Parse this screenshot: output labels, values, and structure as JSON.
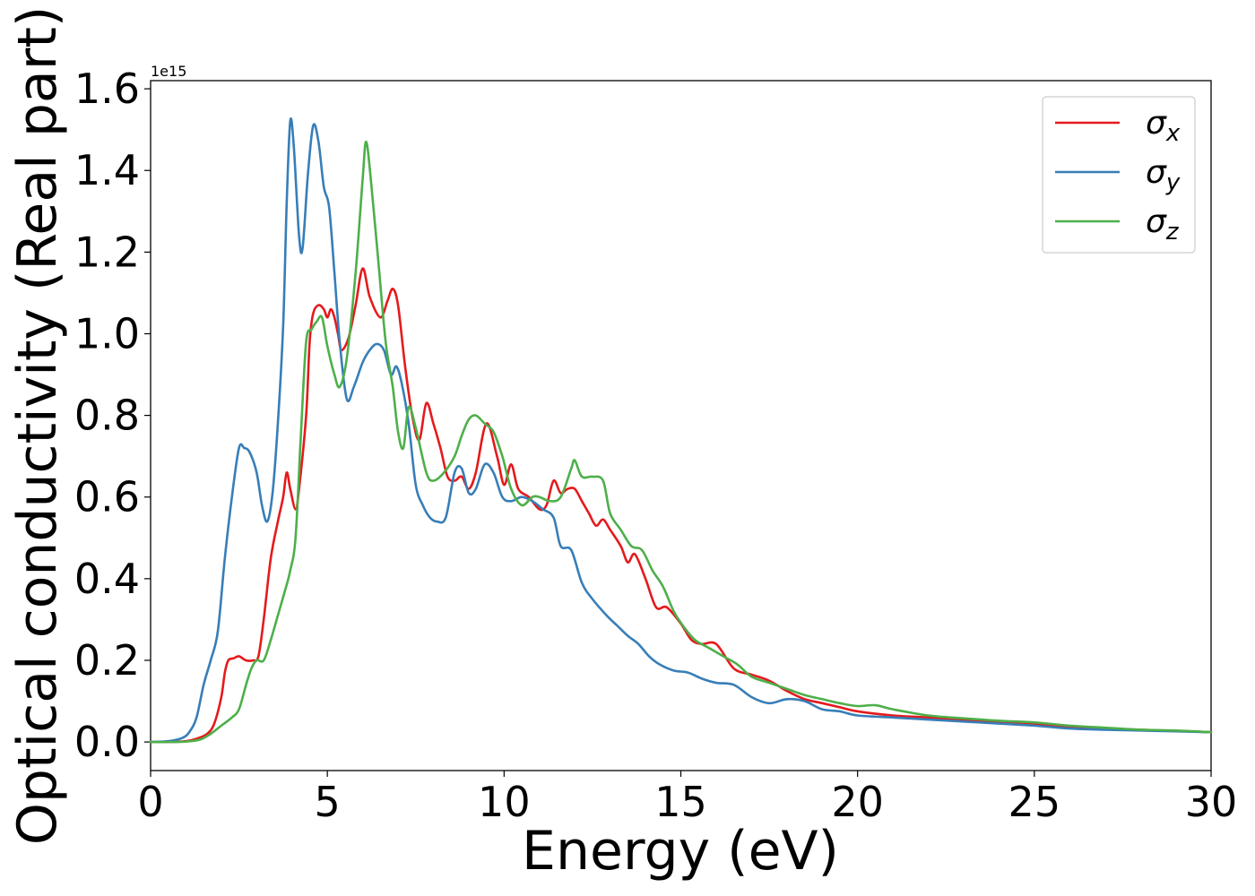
{
  "chart_data": {
    "type": "line",
    "xlabel": "Energy (eV)",
    "ylabel": "Optical conductivity (Real part)",
    "y_offset_text": "1e15",
    "xlim": [
      0,
      30
    ],
    "ylim": [
      -0.07,
      1.62
    ],
    "xticks": [
      0,
      5,
      10,
      15,
      20,
      25,
      30
    ],
    "xtick_labels": [
      "0",
      "5",
      "10",
      "15",
      "20",
      "25",
      "30"
    ],
    "yticks": [
      0.0,
      0.2,
      0.4,
      0.6,
      0.8,
      1.0,
      1.2,
      1.4,
      1.6
    ],
    "ytick_labels": [
      "0.0",
      "0.2",
      "0.4",
      "0.6",
      "0.8",
      "1.0",
      "1.2",
      "1.4",
      "1.6"
    ],
    "grid": false,
    "legend_position": "top-right",
    "series": [
      {
        "name": "σx",
        "symbol": "σ",
        "subscript": "x",
        "color": "#e41a1c",
        "points": [
          [
            0,
            0
          ],
          [
            0.5,
            0
          ],
          [
            1,
            0.002
          ],
          [
            1.3,
            0.008
          ],
          [
            1.6,
            0.02
          ],
          [
            1.8,
            0.045
          ],
          [
            2.0,
            0.11
          ],
          [
            2.1,
            0.17
          ],
          [
            2.2,
            0.2
          ],
          [
            2.35,
            0.205
          ],
          [
            2.5,
            0.21
          ],
          [
            2.7,
            0.2
          ],
          [
            2.9,
            0.2
          ],
          [
            3.05,
            0.21
          ],
          [
            3.2,
            0.3
          ],
          [
            3.4,
            0.45
          ],
          [
            3.6,
            0.54
          ],
          [
            3.75,
            0.6
          ],
          [
            3.85,
            0.66
          ],
          [
            3.95,
            0.62
          ],
          [
            4.1,
            0.57
          ],
          [
            4.2,
            0.62
          ],
          [
            4.4,
            0.8
          ],
          [
            4.5,
            0.98
          ],
          [
            4.6,
            1.05
          ],
          [
            4.75,
            1.07
          ],
          [
            4.9,
            1.06
          ],
          [
            5.0,
            1.04
          ],
          [
            5.1,
            1.06
          ],
          [
            5.2,
            1.04
          ],
          [
            5.3,
            1.0
          ],
          [
            5.4,
            0.96
          ],
          [
            5.6,
            0.99
          ],
          [
            5.8,
            1.07
          ],
          [
            6.0,
            1.16
          ],
          [
            6.2,
            1.09
          ],
          [
            6.5,
            1.04
          ],
          [
            6.7,
            1.08
          ],
          [
            6.85,
            1.11
          ],
          [
            7.0,
            1.07
          ],
          [
            7.2,
            0.92
          ],
          [
            7.4,
            0.8
          ],
          [
            7.6,
            0.74
          ],
          [
            7.8,
            0.83
          ],
          [
            8.0,
            0.78
          ],
          [
            8.2,
            0.72
          ],
          [
            8.4,
            0.65
          ],
          [
            8.6,
            0.64
          ],
          [
            8.8,
            0.65
          ],
          [
            9.0,
            0.62
          ],
          [
            9.2,
            0.66
          ],
          [
            9.5,
            0.78
          ],
          [
            9.8,
            0.7
          ],
          [
            10.0,
            0.63
          ],
          [
            10.2,
            0.68
          ],
          [
            10.4,
            0.62
          ],
          [
            10.7,
            0.6
          ],
          [
            11.0,
            0.57
          ],
          [
            11.2,
            0.58
          ],
          [
            11.4,
            0.64
          ],
          [
            11.6,
            0.61
          ],
          [
            11.8,
            0.62
          ],
          [
            12.0,
            0.62
          ],
          [
            12.2,
            0.59
          ],
          [
            12.4,
            0.56
          ],
          [
            12.6,
            0.53
          ],
          [
            12.8,
            0.545
          ],
          [
            13.0,
            0.52
          ],
          [
            13.3,
            0.48
          ],
          [
            13.5,
            0.44
          ],
          [
            13.7,
            0.46
          ],
          [
            14.0,
            0.4
          ],
          [
            14.3,
            0.33
          ],
          [
            14.6,
            0.33
          ],
          [
            15.0,
            0.29
          ],
          [
            15.3,
            0.25
          ],
          [
            15.6,
            0.24
          ],
          [
            16.0,
            0.24
          ],
          [
            16.5,
            0.18
          ],
          [
            17.0,
            0.165
          ],
          [
            17.5,
            0.15
          ],
          [
            18.0,
            0.125
          ],
          [
            18.5,
            0.105
          ],
          [
            19.0,
            0.095
          ],
          [
            19.5,
            0.085
          ],
          [
            20.0,
            0.075
          ],
          [
            21.0,
            0.065
          ],
          [
            22.0,
            0.06
          ],
          [
            23.0,
            0.055
          ],
          [
            24.0,
            0.05
          ],
          [
            25.0,
            0.045
          ],
          [
            26.0,
            0.035
          ],
          [
            27.0,
            0.033
          ],
          [
            28.0,
            0.03
          ],
          [
            29.0,
            0.027
          ],
          [
            30.0,
            0.024
          ]
        ]
      },
      {
        "name": "σy",
        "symbol": "σ",
        "subscript": "y",
        "color": "#377eb8",
        "points": [
          [
            0,
            0
          ],
          [
            0.5,
            0.002
          ],
          [
            0.9,
            0.01
          ],
          [
            1.1,
            0.025
          ],
          [
            1.3,
            0.06
          ],
          [
            1.5,
            0.14
          ],
          [
            1.7,
            0.2
          ],
          [
            1.9,
            0.27
          ],
          [
            2.1,
            0.45
          ],
          [
            2.3,
            0.6
          ],
          [
            2.5,
            0.72
          ],
          [
            2.65,
            0.72
          ],
          [
            2.8,
            0.71
          ],
          [
            3.0,
            0.66
          ],
          [
            3.15,
            0.58
          ],
          [
            3.3,
            0.54
          ],
          [
            3.45,
            0.61
          ],
          [
            3.6,
            0.78
          ],
          [
            3.75,
            1.02
          ],
          [
            3.85,
            1.32
          ],
          [
            3.95,
            1.52
          ],
          [
            4.05,
            1.46
          ],
          [
            4.2,
            1.24
          ],
          [
            4.3,
            1.21
          ],
          [
            4.45,
            1.39
          ],
          [
            4.6,
            1.51
          ],
          [
            4.75,
            1.47
          ],
          [
            4.9,
            1.36
          ],
          [
            5.05,
            1.31
          ],
          [
            5.2,
            1.15
          ],
          [
            5.35,
            0.98
          ],
          [
            5.55,
            0.84
          ],
          [
            5.75,
            0.87
          ],
          [
            6.0,
            0.93
          ],
          [
            6.2,
            0.96
          ],
          [
            6.4,
            0.975
          ],
          [
            6.6,
            0.96
          ],
          [
            6.8,
            0.9
          ],
          [
            6.95,
            0.92
          ],
          [
            7.1,
            0.88
          ],
          [
            7.3,
            0.78
          ],
          [
            7.5,
            0.63
          ],
          [
            7.7,
            0.58
          ],
          [
            7.9,
            0.55
          ],
          [
            8.1,
            0.54
          ],
          [
            8.35,
            0.55
          ],
          [
            8.6,
            0.66
          ],
          [
            8.8,
            0.67
          ],
          [
            9.0,
            0.61
          ],
          [
            9.2,
            0.62
          ],
          [
            9.45,
            0.68
          ],
          [
            9.7,
            0.66
          ],
          [
            9.95,
            0.6
          ],
          [
            10.2,
            0.59
          ],
          [
            10.5,
            0.6
          ],
          [
            10.8,
            0.59
          ],
          [
            11.1,
            0.57
          ],
          [
            11.4,
            0.55
          ],
          [
            11.6,
            0.48
          ],
          [
            11.9,
            0.47
          ],
          [
            12.2,
            0.39
          ],
          [
            12.5,
            0.35
          ],
          [
            12.9,
            0.31
          ],
          [
            13.2,
            0.285
          ],
          [
            13.5,
            0.26
          ],
          [
            13.8,
            0.24
          ],
          [
            14.1,
            0.21
          ],
          [
            14.4,
            0.19
          ],
          [
            14.8,
            0.175
          ],
          [
            15.2,
            0.17
          ],
          [
            15.6,
            0.155
          ],
          [
            16.0,
            0.145
          ],
          [
            16.5,
            0.14
          ],
          [
            17.0,
            0.11
          ],
          [
            17.5,
            0.095
          ],
          [
            18.0,
            0.105
          ],
          [
            18.5,
            0.1
          ],
          [
            19.0,
            0.08
          ],
          [
            19.5,
            0.075
          ],
          [
            20.0,
            0.065
          ],
          [
            21.0,
            0.06
          ],
          [
            22.0,
            0.055
          ],
          [
            23.0,
            0.05
          ],
          [
            24.0,
            0.045
          ],
          [
            25.0,
            0.04
          ],
          [
            26.0,
            0.033
          ],
          [
            27.0,
            0.03
          ],
          [
            28.0,
            0.028
          ],
          [
            29.0,
            0.026
          ],
          [
            30.0,
            0.024
          ]
        ]
      },
      {
        "name": "σz",
        "symbol": "σ",
        "subscript": "z",
        "color": "#4daf4a",
        "points": [
          [
            0,
            0
          ],
          [
            0.5,
            0
          ],
          [
            1.0,
            0.001
          ],
          [
            1.4,
            0.006
          ],
          [
            1.7,
            0.02
          ],
          [
            2.0,
            0.04
          ],
          [
            2.3,
            0.06
          ],
          [
            2.5,
            0.08
          ],
          [
            2.7,
            0.14
          ],
          [
            2.85,
            0.18
          ],
          [
            3.0,
            0.2
          ],
          [
            3.2,
            0.2
          ],
          [
            3.4,
            0.25
          ],
          [
            3.6,
            0.31
          ],
          [
            3.8,
            0.37
          ],
          [
            3.95,
            0.42
          ],
          [
            4.1,
            0.5
          ],
          [
            4.25,
            0.75
          ],
          [
            4.4,
            0.98
          ],
          [
            4.55,
            1.01
          ],
          [
            4.7,
            1.03
          ],
          [
            4.85,
            1.04
          ],
          [
            5.0,
            0.97
          ],
          [
            5.2,
            0.9
          ],
          [
            5.35,
            0.87
          ],
          [
            5.55,
            0.94
          ],
          [
            5.8,
            1.15
          ],
          [
            6.0,
            1.38
          ],
          [
            6.1,
            1.47
          ],
          [
            6.25,
            1.36
          ],
          [
            6.45,
            1.17
          ],
          [
            6.65,
            0.98
          ],
          [
            6.85,
            0.87
          ],
          [
            7.0,
            0.76
          ],
          [
            7.15,
            0.72
          ],
          [
            7.3,
            0.82
          ],
          [
            7.5,
            0.77
          ],
          [
            7.8,
            0.66
          ],
          [
            8.0,
            0.64
          ],
          [
            8.3,
            0.66
          ],
          [
            8.6,
            0.7
          ],
          [
            8.8,
            0.75
          ],
          [
            9.0,
            0.79
          ],
          [
            9.2,
            0.8
          ],
          [
            9.45,
            0.78
          ],
          [
            9.7,
            0.76
          ],
          [
            9.95,
            0.7
          ],
          [
            10.2,
            0.62
          ],
          [
            10.5,
            0.58
          ],
          [
            10.8,
            0.6
          ],
          [
            11.0,
            0.6
          ],
          [
            11.3,
            0.59
          ],
          [
            11.6,
            0.6
          ],
          [
            11.9,
            0.67
          ],
          [
            12.0,
            0.69
          ],
          [
            12.2,
            0.65
          ],
          [
            12.5,
            0.65
          ],
          [
            12.8,
            0.64
          ],
          [
            13.0,
            0.56
          ],
          [
            13.3,
            0.52
          ],
          [
            13.6,
            0.48
          ],
          [
            13.9,
            0.47
          ],
          [
            14.2,
            0.42
          ],
          [
            14.5,
            0.38
          ],
          [
            14.8,
            0.32
          ],
          [
            15.1,
            0.28
          ],
          [
            15.4,
            0.25
          ],
          [
            15.8,
            0.23
          ],
          [
            16.2,
            0.21
          ],
          [
            16.6,
            0.19
          ],
          [
            17.0,
            0.16
          ],
          [
            17.5,
            0.145
          ],
          [
            18.0,
            0.13
          ],
          [
            18.5,
            0.115
          ],
          [
            19.0,
            0.105
          ],
          [
            19.5,
            0.095
          ],
          [
            20.0,
            0.088
          ],
          [
            20.5,
            0.09
          ],
          [
            21.0,
            0.08
          ],
          [
            22.0,
            0.065
          ],
          [
            23.0,
            0.058
          ],
          [
            24.0,
            0.052
          ],
          [
            25.0,
            0.048
          ],
          [
            26.0,
            0.04
          ],
          [
            27.0,
            0.035
          ],
          [
            28.0,
            0.03
          ],
          [
            29.0,
            0.028
          ],
          [
            30.0,
            0.024
          ]
        ]
      }
    ]
  }
}
